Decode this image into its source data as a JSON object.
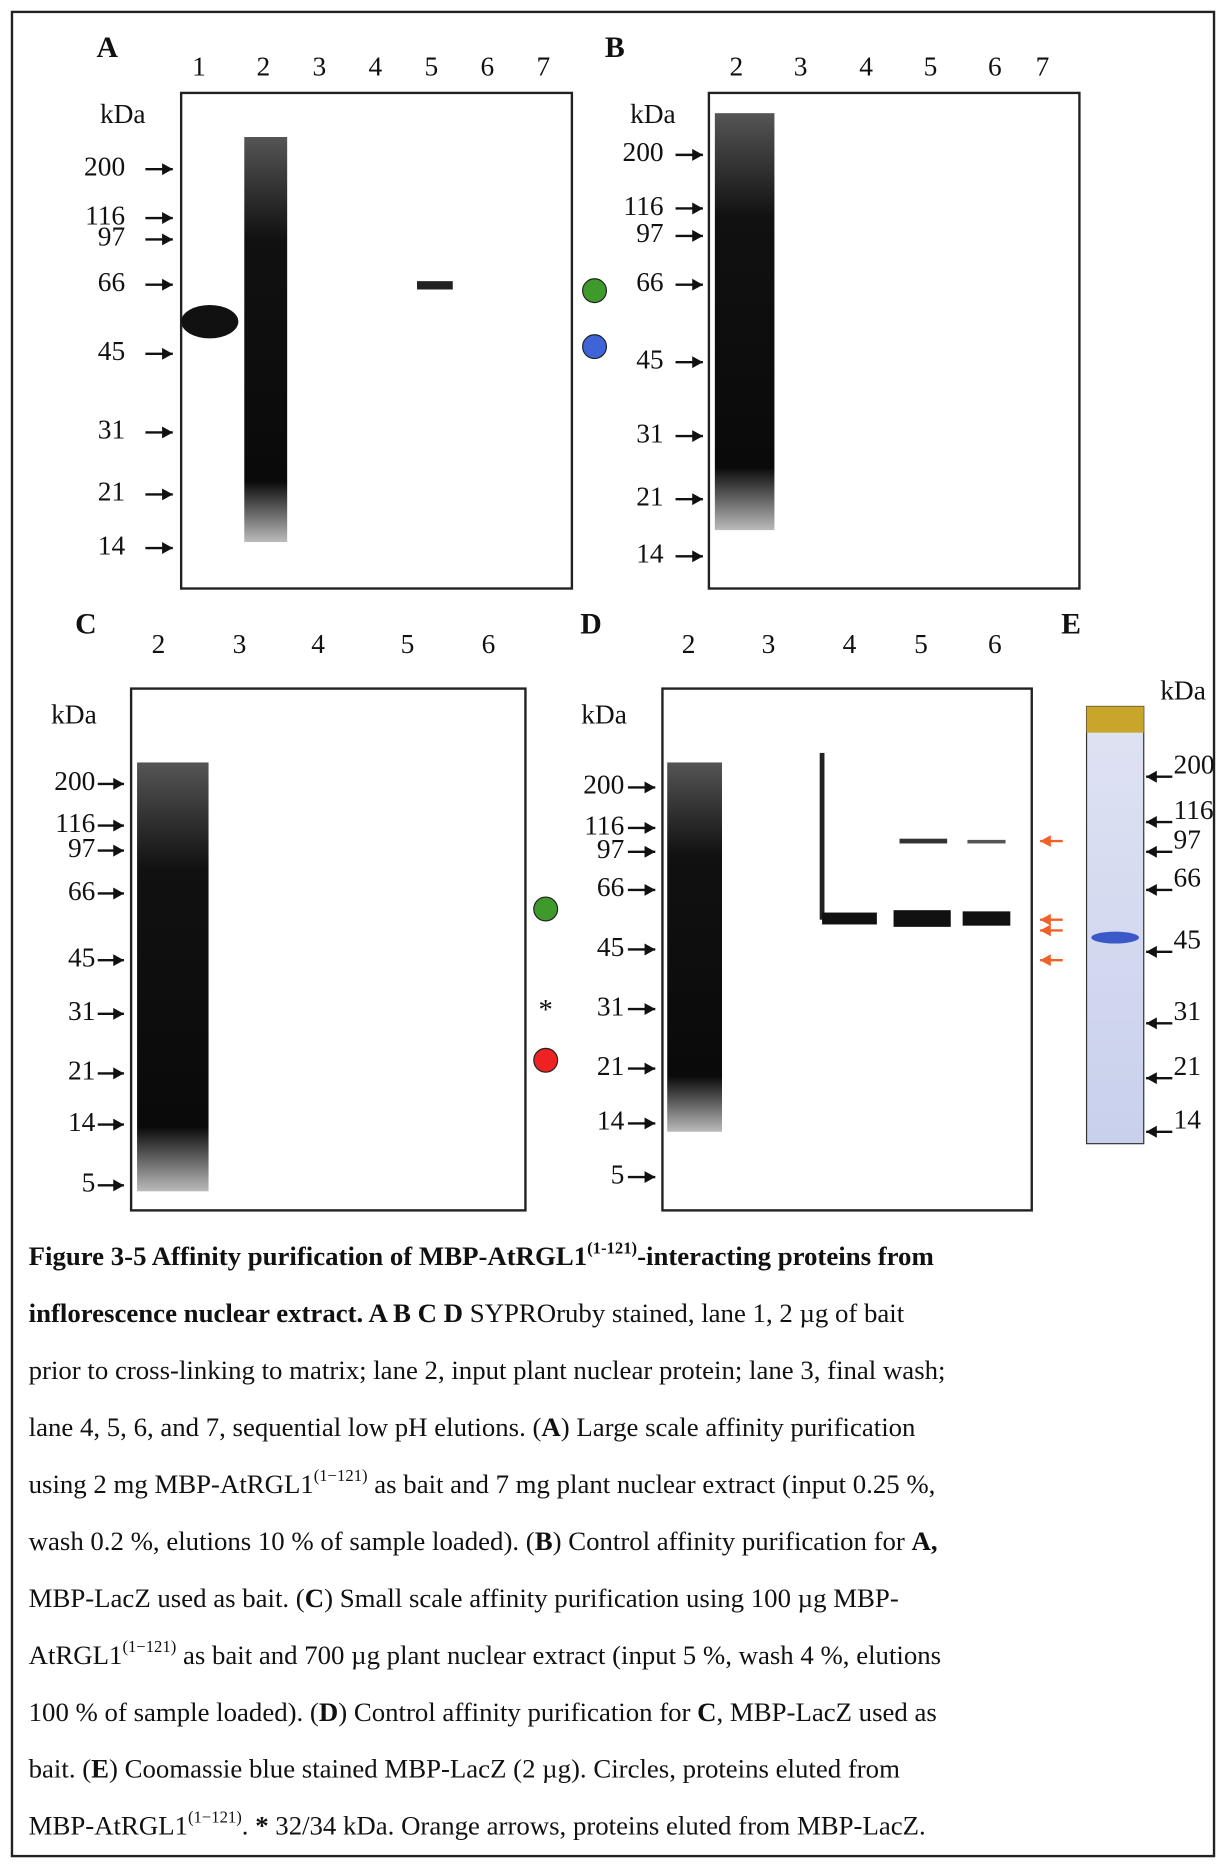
{
  "panels": [
    {
      "label": "A",
      "lanes": [
        "1",
        "2",
        "3",
        "4",
        "5",
        "6",
        "7"
      ],
      "unit": "kDa",
      "markers": [
        "200",
        "116",
        "97",
        "66",
        "45",
        "31",
        "21",
        "14"
      ]
    },
    {
      "label": "B",
      "lanes": [
        "2",
        "3",
        "4",
        "5",
        "6",
        "7"
      ],
      "unit": "kDa",
      "markers": [
        "200",
        "116",
        "97",
        "66",
        "45",
        "31",
        "21",
        "14"
      ]
    },
    {
      "label": "C",
      "lanes": [
        "2",
        "3",
        "4",
        "5",
        "6"
      ],
      "unit": "kDa",
      "markers": [
        "200",
        "116",
        "97",
        "66",
        "45",
        "31",
        "21",
        "14",
        "5"
      ],
      "annotation": "*"
    },
    {
      "label": "D",
      "lanes": [
        "2",
        "3",
        "4",
        "5",
        "6"
      ],
      "unit": "kDa",
      "markers": [
        "200",
        "116",
        "97",
        "66",
        "45",
        "31",
        "21",
        "14",
        "5"
      ]
    },
    {
      "label": "E",
      "unit": "kDa",
      "markers": [
        "200",
        "116",
        "97",
        "66",
        "45",
        "31",
        "21",
        "14"
      ]
    }
  ],
  "caption": {
    "lines": [
      [
        {
          "text": "Figure 3-5 Affinity purification of MBP-AtRGL1",
          "style": "bold"
        },
        {
          "text": "(1-121)",
          "style": "bold-sup"
        },
        {
          "text": "-interacting proteins from",
          "style": "bold"
        }
      ],
      [
        {
          "text": "inflorescence nuclear extract. A B C D",
          "style": "bold"
        },
        {
          "text": " SYPROruby stained, lane 1, 2 µg of bait",
          "style": "normal"
        }
      ],
      [
        {
          "text": "prior to cross-linking to matrix; lane 2, input plant nuclear protein; lane 3, final wash;",
          "style": "normal"
        }
      ],
      [
        {
          "text": "lane 4, 5, 6, and 7, sequential low pH elutions. (",
          "style": "normal"
        },
        {
          "text": "A",
          "style": "bold"
        },
        {
          "text": ") Large scale affinity purification",
          "style": "normal"
        }
      ],
      [
        {
          "text": "using 2 mg MBP-AtRGL1",
          "style": "normal"
        },
        {
          "text": "(1−121)",
          "style": "sup"
        },
        {
          "text": " as bait and 7 mg plant nuclear extract (input 0.25 %,",
          "style": "normal"
        }
      ],
      [
        {
          "text": "wash 0.2 %, elutions 10 % of sample loaded). (",
          "style": "normal"
        },
        {
          "text": "B",
          "style": "bold"
        },
        {
          "text": ") Control affinity purification for ",
          "style": "normal"
        },
        {
          "text": "A,",
          "style": "bold"
        }
      ],
      [
        {
          "text": "MBP-LacZ used as bait. (",
          "style": "normal"
        },
        {
          "text": "C",
          "style": "bold"
        },
        {
          "text": ") Small scale affinity purification using 100 µg MBP-",
          "style": "normal"
        }
      ],
      [
        {
          "text": "AtRGL1",
          "style": "normal"
        },
        {
          "text": "(1−121)",
          "style": "sup"
        },
        {
          "text": " as bait and 700 µg plant nuclear extract (input 5 %, wash 4 %, elutions",
          "style": "normal"
        }
      ],
      [
        {
          "text": "100 % of sample loaded). (",
          "style": "normal"
        },
        {
          "text": "D",
          "style": "bold"
        },
        {
          "text": ") Control affinity purification for ",
          "style": "normal"
        },
        {
          "text": "C",
          "style": "bold"
        },
        {
          "text": ", MBP-LacZ used as",
          "style": "normal"
        }
      ],
      [
        {
          "text": "bait. (",
          "style": "normal"
        },
        {
          "text": "E",
          "style": "bold"
        },
        {
          "text": ") Coomassie blue stained MBP-LacZ (2 µg). Circles, proteins eluted from",
          "style": "normal"
        }
      ],
      [
        {
          "text": "MBP-AtRGL1",
          "style": "normal"
        },
        {
          "text": "(1−121)",
          "style": "sup"
        },
        {
          "text": ". ",
          "style": "normal"
        },
        {
          "text": "*",
          "style": "bold"
        },
        {
          "text": " 32/34 kDa. Orange arrows, proteins eluted from MBP-LacZ.",
          "style": "normal"
        }
      ]
    ]
  }
}
